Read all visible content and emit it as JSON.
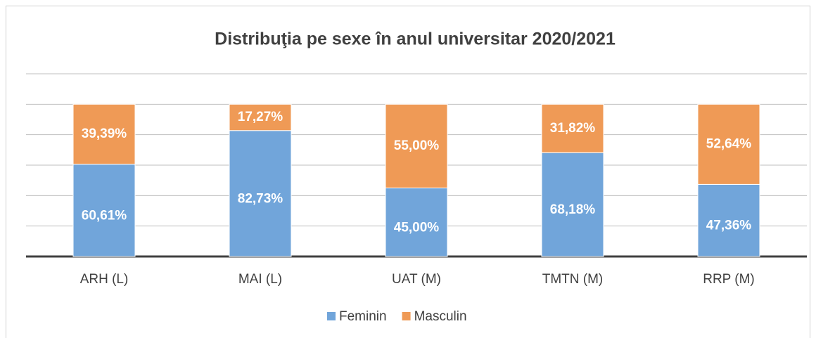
{
  "chart_data": {
    "type": "stacked_bar",
    "title": "Distribuţia pe sexe în anul universitar 2020/2021",
    "categories": [
      "ARH (L)",
      "MAI (L)",
      "UAT (M)",
      "TMTN (M)",
      "RRP (M)"
    ],
    "series": [
      {
        "name": "Feminin",
        "color": "#71a5da",
        "values": [
          60.61,
          82.73,
          45.0,
          68.18,
          47.36
        ],
        "value_labels": [
          "60,61%",
          "82,73%",
          "45,00%",
          "68,18%",
          "47,36%"
        ]
      },
      {
        "name": "Masculin",
        "color": "#ef9a56",
        "values": [
          39.39,
          17.27,
          55.0,
          31.82,
          52.64
        ],
        "value_labels": [
          "39,39%",
          "17,27%",
          "55,00%",
          "31,82%",
          "52,64%"
        ]
      }
    ],
    "ylim": [
      0,
      120
    ],
    "yticks": [
      0,
      20,
      40,
      60,
      80,
      100,
      120
    ],
    "grid": true,
    "legend": "bottom"
  }
}
